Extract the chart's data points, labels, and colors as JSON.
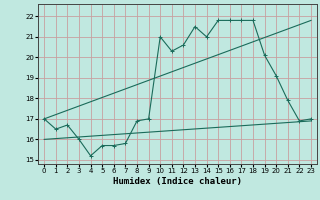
{
  "xlabel": "Humidex (Indice chaleur)",
  "background_color": "#c0e8e0",
  "grid_color": "#c8a0a0",
  "line_color": "#1a6b5a",
  "xlim": [
    -0.5,
    23.5
  ],
  "ylim": [
    14.8,
    22.6
  ],
  "yticks": [
    15,
    16,
    17,
    18,
    19,
    20,
    21,
    22
  ],
  "xticks": [
    0,
    1,
    2,
    3,
    4,
    5,
    6,
    7,
    8,
    9,
    10,
    11,
    12,
    13,
    14,
    15,
    16,
    17,
    18,
    19,
    20,
    21,
    22,
    23
  ],
  "line1_x": [
    0,
    1,
    2,
    3,
    4,
    5,
    6,
    7,
    8,
    9,
    10,
    11,
    12,
    13,
    14,
    15,
    16,
    17,
    18,
    19,
    20,
    21,
    22,
    23
  ],
  "line1_y": [
    17.0,
    16.5,
    16.7,
    16.0,
    15.2,
    15.7,
    15.7,
    15.8,
    16.9,
    17.0,
    21.0,
    20.3,
    20.6,
    21.5,
    21.0,
    21.8,
    21.8,
    21.8,
    21.8,
    20.1,
    19.1,
    17.9,
    16.9,
    17.0
  ],
  "line3_x": [
    0,
    23
  ],
  "line3_y": [
    16.0,
    16.9
  ],
  "line4_x": [
    0,
    23
  ],
  "line4_y": [
    17.0,
    21.8
  ]
}
